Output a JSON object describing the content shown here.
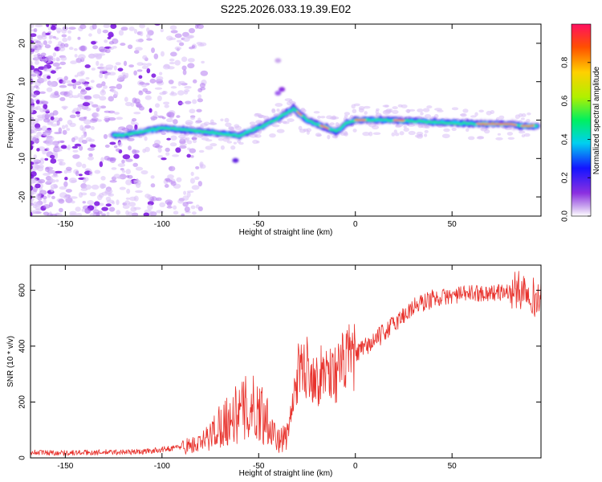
{
  "figure_title": "S225.2026.033.19.39.E02",
  "chart_data": [
    {
      "type": "heatmap",
      "title": "S225.2026.033.19.39.E02",
      "xlabel": "Height of straight line (km)",
      "ylabel": "Frequency (Hz)",
      "xlim": [
        -168,
        96
      ],
      "ylim": [
        -25,
        25
      ],
      "xticks": [
        -150,
        -100,
        -50,
        0,
        50
      ],
      "yticks": [
        -20,
        -10,
        0,
        10,
        20
      ],
      "colorbar": {
        "label": "Normalized spectral amplitude",
        "range": [
          0,
          1
        ],
        "ticks": [
          0,
          0.2,
          0.4,
          0.6,
          0.8
        ],
        "colormap": "rainbow"
      },
      "ridge_points": [
        {
          "x": -120,
          "y": -4
        },
        {
          "x": -100,
          "y": -2
        },
        {
          "x": -80,
          "y": -3
        },
        {
          "x": -60,
          "y": -4
        },
        {
          "x": -50,
          "y": -2
        },
        {
          "x": -40,
          "y": 0.5
        },
        {
          "x": -32,
          "y": 3
        },
        {
          "x": -25,
          "y": 0
        },
        {
          "x": -15,
          "y": -2
        },
        {
          "x": -10,
          "y": -3
        },
        {
          "x": -5,
          "y": -1
        },
        {
          "x": 0,
          "y": 0
        },
        {
          "x": 20,
          "y": 0
        },
        {
          "x": 40,
          "y": -0.5
        },
        {
          "x": 65,
          "y": -1
        },
        {
          "x": 80,
          "y": -1
        },
        {
          "x": 85,
          "y": -1.5
        },
        {
          "x": 92,
          "y": -1.5
        }
      ]
    },
    {
      "type": "line",
      "xlabel": "Height of straight line (km)",
      "ylabel": "SNR (10 * v/v)",
      "xlim": [
        -168,
        96
      ],
      "ylim": [
        0,
        690
      ],
      "xticks": [
        -150,
        -100,
        -50,
        0,
        50
      ],
      "yticks": [
        0,
        200,
        400,
        600
      ],
      "series": [
        {
          "name": "SNR",
          "color": "#e8322c",
          "x": [
            -168,
            -150,
            -130,
            -110,
            -100,
            -90,
            -80,
            -75,
            -70,
            -60,
            -55,
            -50,
            -45,
            -40,
            -35,
            -30,
            -25,
            -20,
            -15,
            -10,
            -5,
            0,
            10,
            20,
            30,
            40,
            50,
            60,
            70,
            80,
            85,
            90,
            93,
            96
          ],
          "y": [
            20,
            18,
            20,
            22,
            30,
            40,
            50,
            80,
            120,
            160,
            180,
            170,
            140,
            60,
            80,
            300,
            330,
            280,
            320,
            300,
            350,
            370,
            420,
            480,
            540,
            570,
            580,
            590,
            590,
            595,
            600,
            610,
            560,
            580
          ]
        }
      ]
    }
  ]
}
